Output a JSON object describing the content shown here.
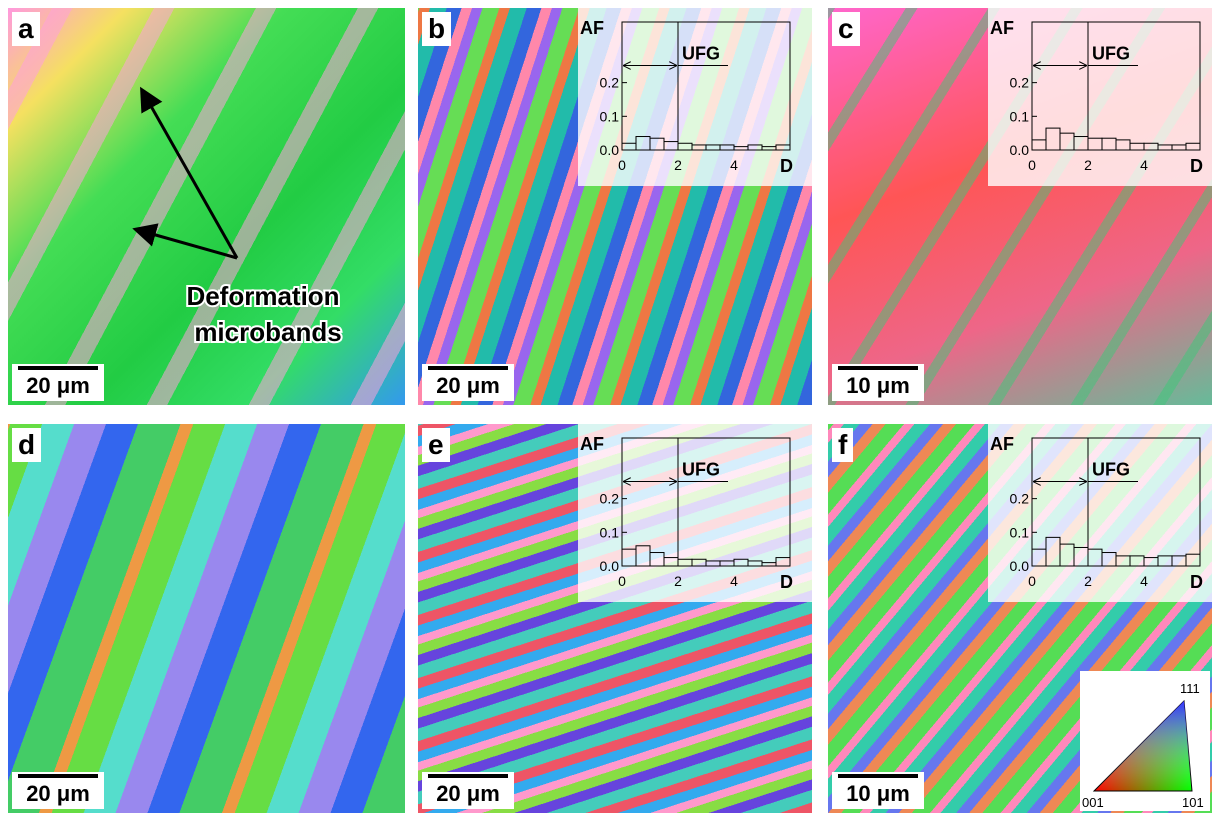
{
  "panels": [
    {
      "label": "a",
      "scale_bar": "20 μm"
    },
    {
      "label": "b",
      "scale_bar": "20 μm"
    },
    {
      "label": "c",
      "scale_bar": "10 μm"
    },
    {
      "label": "d",
      "scale_bar": "20 μm"
    },
    {
      "label": "e",
      "scale_bar": "20 μm"
    },
    {
      "label": "f",
      "scale_bar": "10 μm"
    }
  ],
  "annotation": [
    "Deformation",
    "microbands"
  ],
  "color_key": {
    "top": "111",
    "left": "001",
    "right": "101"
  },
  "chart_data": [
    {
      "type": "histogram",
      "ylabel": "AF",
      "xlabel": "D",
      "annotation": "UFG",
      "threshold": 2,
      "bins": [
        0,
        0.5,
        1,
        1.5,
        2,
        2.5,
        3,
        3.5,
        4,
        4.5,
        5,
        5.5,
        6
      ],
      "values": [
        0.02,
        0.04,
        0.035,
        0.025,
        0.02,
        0.015,
        0.015,
        0.015,
        0.01,
        0.015,
        0.01,
        0.015
      ],
      "xlim": [
        0,
        6
      ],
      "xticks": [
        0,
        2,
        4
      ],
      "ylim": [
        0,
        0.38
      ],
      "yticks": [
        {
          "value": 0,
          "label": "0.0"
        },
        0.1,
        0.2
      ]
    },
    {
      "type": "histogram",
      "ylabel": "AF",
      "xlabel": "D",
      "annotation": "UFG",
      "threshold": 2,
      "bins": [
        0,
        0.5,
        1,
        1.5,
        2,
        2.5,
        3,
        3.5,
        4,
        4.5,
        5,
        5.5,
        6
      ],
      "values": [
        0.03,
        0.065,
        0.05,
        0.04,
        0.035,
        0.035,
        0.03,
        0.02,
        0.02,
        0.015,
        0.015,
        0.02
      ],
      "xlim": [
        0,
        6
      ],
      "xticks": [
        0,
        2,
        4
      ],
      "ylim": [
        0,
        0.38
      ],
      "yticks": [
        {
          "value": 0,
          "label": "0.0"
        },
        0.1,
        0.2
      ]
    },
    {
      "type": "histogram",
      "ylabel": "AF",
      "xlabel": "D",
      "annotation": "UFG",
      "threshold": 2,
      "bins": [
        0,
        0.5,
        1,
        1.5,
        2,
        2.5,
        3,
        3.5,
        4,
        4.5,
        5,
        5.5,
        6
      ],
      "values": [
        0.05,
        0.06,
        0.04,
        0.025,
        0.02,
        0.02,
        0.015,
        0.015,
        0.02,
        0.015,
        0.01,
        0.025
      ],
      "xlim": [
        0,
        6
      ],
      "xticks": [
        0,
        2,
        4
      ],
      "ylim": [
        0,
        0.38
      ],
      "yticks": [
        {
          "value": 0,
          "label": "0.0"
        },
        0.1,
        0.2
      ]
    },
    {
      "type": "histogram",
      "ylabel": "AF",
      "xlabel": "D",
      "annotation": "UFG",
      "threshold": 2,
      "bins": [
        0,
        0.5,
        1,
        1.5,
        2,
        2.5,
        3,
        3.5,
        4,
        4.5,
        5,
        5.5,
        6
      ],
      "values": [
        0.05,
        0.085,
        0.065,
        0.055,
        0.05,
        0.04,
        0.03,
        0.03,
        0.025,
        0.03,
        0.03,
        0.035
      ],
      "xlim": [
        0,
        6
      ],
      "xticks": [
        0,
        2,
        4
      ],
      "ylim": [
        0,
        0.38
      ],
      "yticks": [
        {
          "value": 0,
          "label": "0.0"
        },
        0.1,
        0.2
      ]
    }
  ]
}
